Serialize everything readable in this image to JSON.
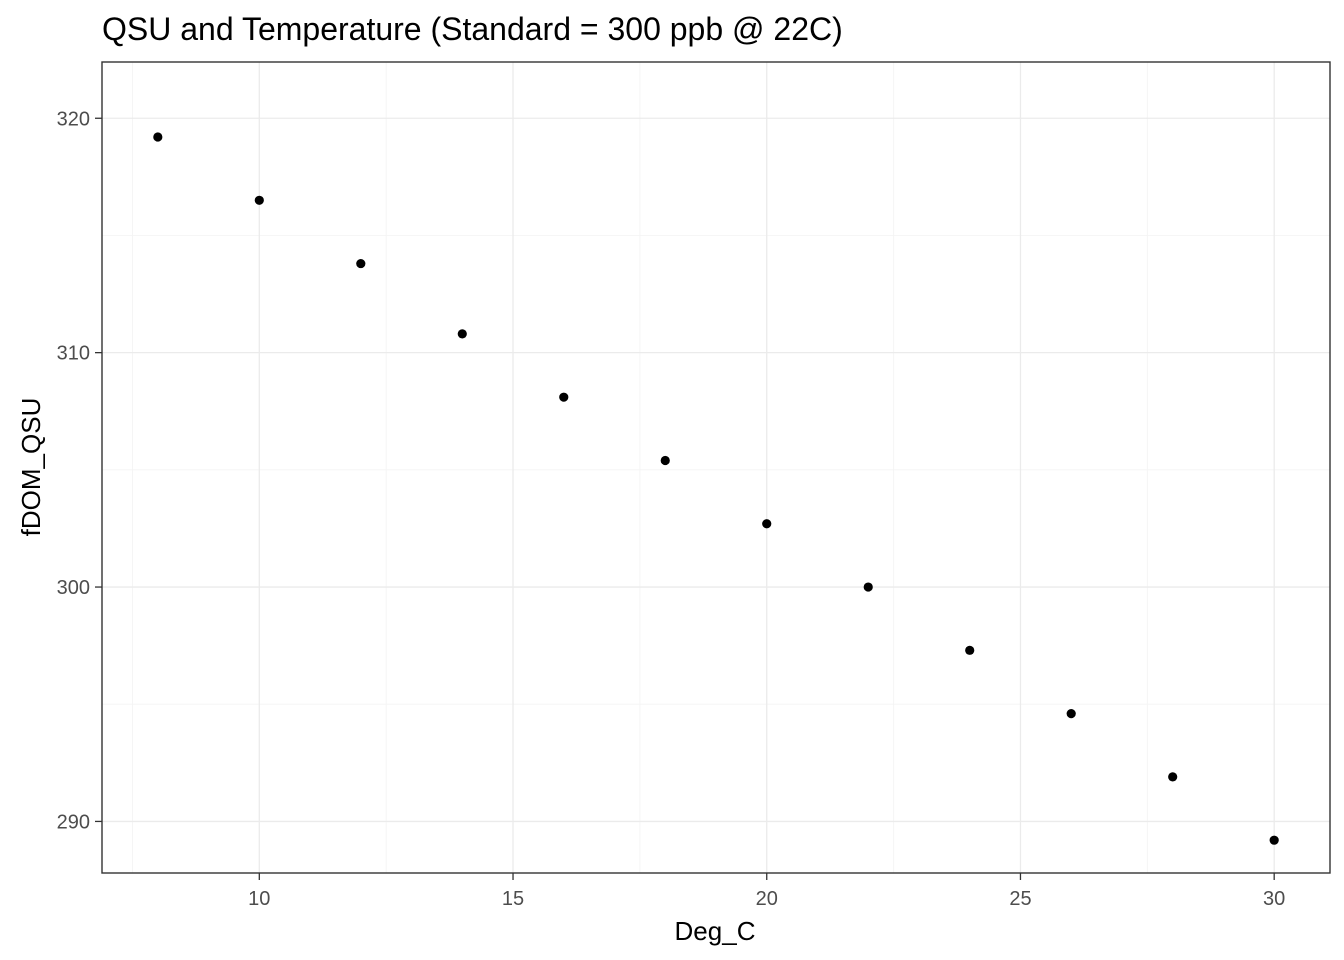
{
  "chart_data": {
    "type": "scatter",
    "title": "QSU and Temperature (Standard = 300 ppb @ 22C)",
    "xlabel": "Deg_C",
    "ylabel": "fDOM_QSU",
    "xlim": [
      6.9,
      31.1
    ],
    "ylim": [
      287.8,
      322.4
    ],
    "x_ticks": [
      10,
      15,
      20,
      25,
      30
    ],
    "x_tick_labels": [
      "10",
      "15",
      "20",
      "25",
      "30"
    ],
    "y_ticks": [
      290,
      300,
      310,
      320
    ],
    "y_tick_labels": [
      "290",
      "300",
      "310",
      "320"
    ],
    "x_minor_ticks": [
      7.5,
      12.5,
      17.5,
      22.5,
      27.5
    ],
    "y_minor_ticks": [
      295,
      305,
      315
    ],
    "grid": true,
    "legend": "none",
    "point_color": "#000000",
    "x": [
      8,
      10,
      12,
      14,
      16,
      18,
      20,
      22,
      24,
      26,
      28,
      30
    ],
    "y": [
      319.2,
      316.5,
      313.8,
      310.8,
      308.1,
      305.4,
      302.7,
      300.0,
      297.3,
      294.6,
      291.9,
      289.2
    ]
  }
}
